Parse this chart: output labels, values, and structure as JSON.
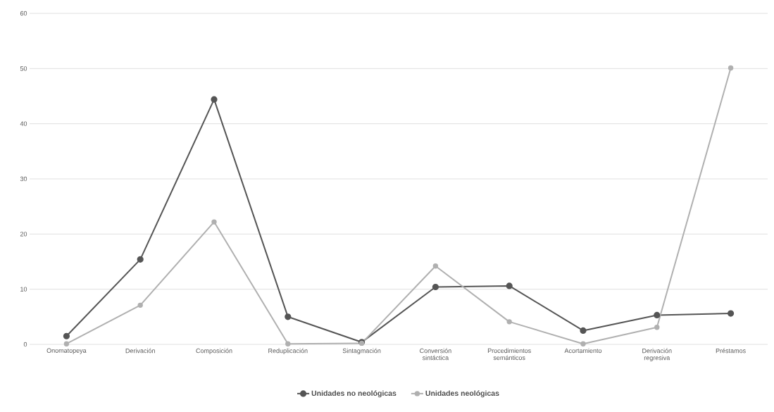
{
  "chart_data": {
    "type": "line",
    "categories": [
      "Onomatopeya",
      "Derivación",
      "Composición",
      "Reduplicación",
      "Sintagmación",
      "Conversión sintáctica",
      "Procedimientos semánticos",
      "Acortamiento",
      "Derivación regresiva",
      "Préstamos"
    ],
    "series": [
      {
        "name": "Unidades no neológicas",
        "color": "#555555",
        "values": [
          1.5,
          15.4,
          44.4,
          5.0,
          0.4,
          10.4,
          10.6,
          2.5,
          5.3,
          5.6
        ]
      },
      {
        "name": "Unidades neológicas",
        "color": "#b0b0b0",
        "values": [
          0.1,
          7.1,
          22.2,
          0.1,
          0.2,
          14.2,
          4.1,
          0.1,
          3.1,
          50.1
        ]
      }
    ],
    "ylim": [
      0,
      60
    ],
    "yticks": [
      0,
      10,
      20,
      30,
      40,
      50,
      60
    ],
    "grid": "y",
    "legend": "bottom",
    "marker": "circle",
    "line_style": "solid"
  }
}
